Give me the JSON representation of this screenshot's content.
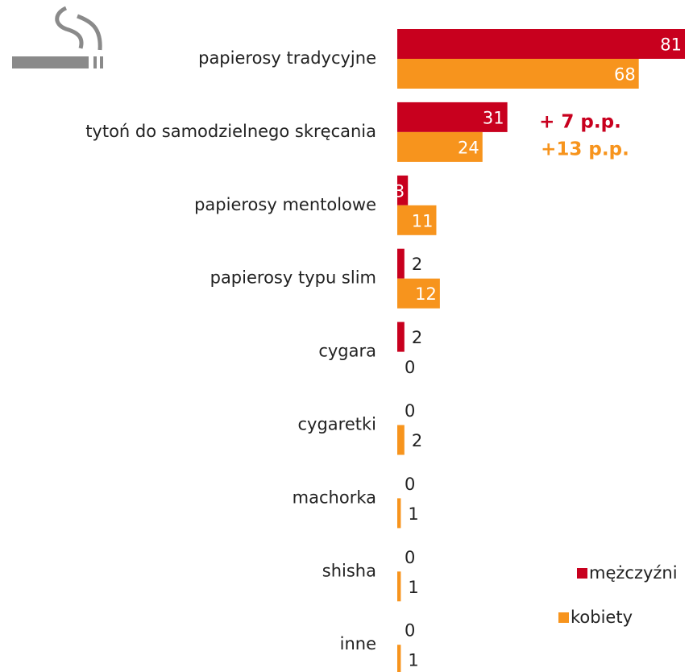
{
  "chart_data": {
    "type": "bar",
    "orientation": "horizontal",
    "categories": [
      "papierosy tradycyjne",
      "tytoń do samodzielnego skręcania",
      "papierosy mentolowe",
      "papierosy typu slim",
      "cygara",
      "cygaretki",
      "machorka",
      "shisha",
      "inne"
    ],
    "series": [
      {
        "name": "mężczyźni",
        "color": "#c8001e",
        "values": [
          81,
          31,
          3,
          2,
          2,
          0,
          0,
          0,
          0
        ]
      },
      {
        "name": "kobiety",
        "color": "#f7941d",
        "values": [
          68,
          24,
          11,
          12,
          0,
          2,
          1,
          1,
          1
        ]
      }
    ],
    "xlim": [
      0,
      81
    ],
    "annotations": [
      {
        "text": "+ 7 p.p.",
        "color": "#c8001e"
      },
      {
        "text": "+13 p.p.",
        "color": "#f7941d"
      }
    ],
    "legend": "bottom-right"
  }
}
